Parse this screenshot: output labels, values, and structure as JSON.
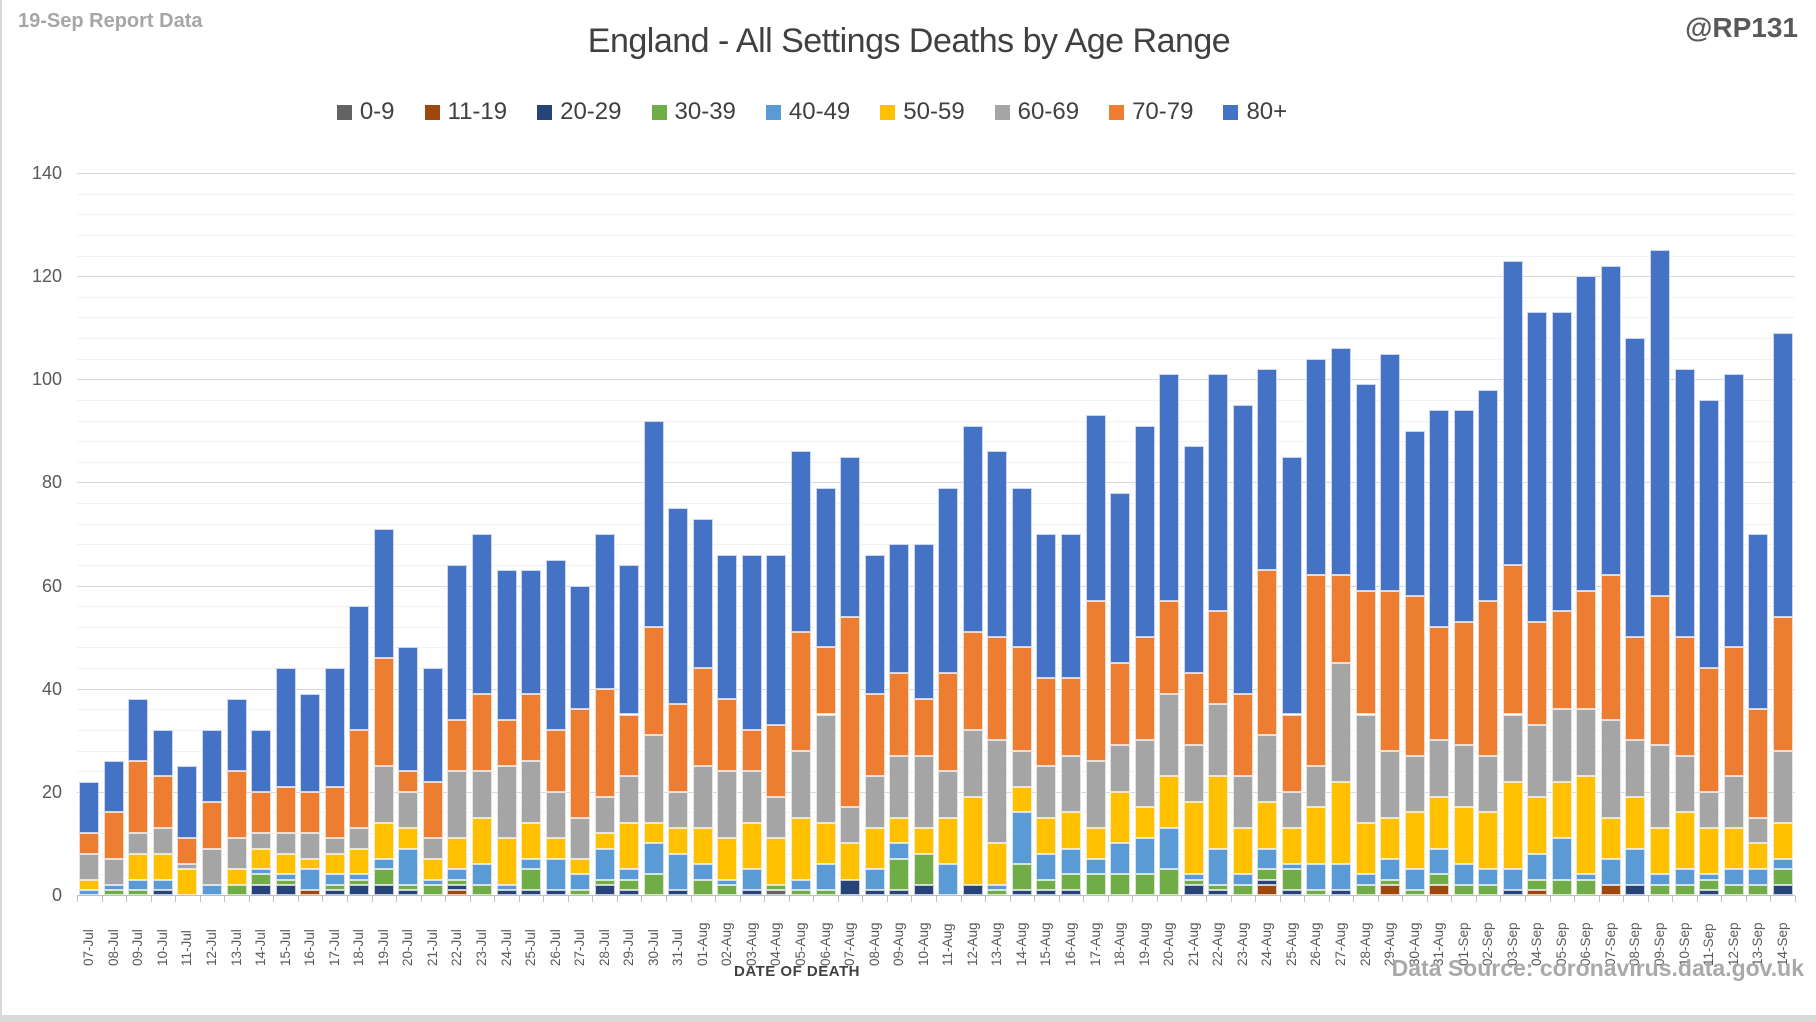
{
  "header": {
    "report_label": "19-Sep Report Data",
    "handle": "@RP131"
  },
  "footer": {
    "xaxis_title": "DATE OF DEATH",
    "source": "Data Source: coronavirus.data.gov.uk"
  },
  "chart_data": {
    "type": "bar",
    "stacked": true,
    "title": "England - All Settings Deaths by Age Range",
    "xlabel": "DATE OF DEATH",
    "ylabel": "",
    "ylim": [
      0,
      140
    ],
    "y_major": 20,
    "y_minor": 4,
    "y_ticks": [
      0,
      20,
      40,
      60,
      80,
      100,
      120,
      140
    ],
    "grid": true,
    "legend_position": "top",
    "categories": [
      "07-Jul",
      "08-Jul",
      "09-Jul",
      "10-Jul",
      "11-Jul",
      "12-Jul",
      "13-Jul",
      "14-Jul",
      "15-Jul",
      "16-Jul",
      "17-Jul",
      "18-Jul",
      "19-Jul",
      "20-Jul",
      "21-Jul",
      "22-Jul",
      "23-Jul",
      "24-Jul",
      "25-Jul",
      "26-Jul",
      "27-Jul",
      "28-Jul",
      "29-Jul",
      "30-Jul",
      "31-Jul",
      "01-Aug",
      "02-Aug",
      "03-Aug",
      "04-Aug",
      "05-Aug",
      "06-Aug",
      "07-Aug",
      "08-Aug",
      "09-Aug",
      "10-Aug",
      "11-Aug",
      "12-Aug",
      "13-Aug",
      "14-Aug",
      "15-Aug",
      "16-Aug",
      "17-Aug",
      "18-Aug",
      "19-Aug",
      "20-Aug",
      "21-Aug",
      "22-Aug",
      "23-Aug",
      "24-Aug",
      "25-Aug",
      "26-Aug",
      "27-Aug",
      "28-Aug",
      "29-Aug",
      "30-Aug",
      "31-Aug",
      "01-Sep",
      "02-Sep",
      "03-Sep",
      "04-Sep",
      "05-Sep",
      "06-Sep",
      "07-Sep",
      "08-Sep",
      "09-Sep",
      "10-Sep",
      "11-Sep",
      "12-Sep",
      "13-Sep",
      "14-Sep"
    ],
    "series": [
      {
        "name": "0-9",
        "color": "#636363",
        "values": [
          0,
          0,
          0,
          0,
          0,
          0,
          0,
          0,
          0,
          0,
          0,
          0,
          0,
          0,
          0,
          0,
          0,
          0,
          0,
          0,
          0,
          0,
          0,
          0,
          0,
          0,
          0,
          0,
          1,
          0,
          0,
          0,
          0,
          0,
          0,
          0,
          0,
          0,
          0,
          0,
          0,
          0,
          0,
          0,
          0,
          0,
          0,
          0,
          0,
          0,
          0,
          0,
          0,
          0,
          0,
          0,
          0,
          0,
          0,
          0,
          0,
          0,
          0,
          0,
          0,
          0,
          0,
          0,
          0,
          0
        ]
      },
      {
        "name": "11-19",
        "color": "#9e480e",
        "values": [
          0,
          0,
          0,
          0,
          0,
          0,
          0,
          0,
          0,
          1,
          0,
          0,
          0,
          0,
          0,
          1,
          0,
          0,
          0,
          0,
          0,
          0,
          0,
          0,
          0,
          0,
          0,
          0,
          0,
          0,
          0,
          0,
          0,
          0,
          0,
          0,
          0,
          0,
          0,
          0,
          0,
          0,
          0,
          0,
          0,
          0,
          0,
          0,
          2,
          0,
          0,
          0,
          0,
          2,
          0,
          2,
          0,
          0,
          0,
          1,
          0,
          0,
          2,
          0,
          0,
          0,
          0,
          0,
          0,
          0
        ]
      },
      {
        "name": "20-29",
        "color": "#264478",
        "values": [
          0,
          0,
          0,
          1,
          0,
          0,
          0,
          2,
          2,
          0,
          1,
          2,
          2,
          1,
          0,
          1,
          0,
          1,
          1,
          1,
          0,
          2,
          1,
          0,
          1,
          0,
          0,
          1,
          0,
          0,
          0,
          3,
          1,
          1,
          2,
          0,
          2,
          0,
          1,
          1,
          1,
          0,
          0,
          0,
          0,
          2,
          1,
          0,
          1,
          1,
          0,
          1,
          0,
          0,
          0,
          0,
          0,
          0,
          1,
          0,
          0,
          0,
          0,
          2,
          0,
          0,
          1,
          0,
          0,
          2
        ]
      },
      {
        "name": "30-39",
        "color": "#70ad47",
        "values": [
          0,
          1,
          1,
          0,
          0,
          0,
          2,
          2,
          1,
          0,
          1,
          1,
          3,
          1,
          2,
          1,
          2,
          0,
          4,
          0,
          1,
          1,
          2,
          4,
          0,
          3,
          2,
          0,
          1,
          1,
          1,
          0,
          0,
          6,
          6,
          0,
          0,
          1,
          5,
          2,
          3,
          4,
          4,
          4,
          5,
          1,
          1,
          2,
          2,
          4,
          1,
          0,
          2,
          1,
          1,
          2,
          2,
          2,
          0,
          2,
          3,
          3,
          0,
          0,
          2,
          2,
          2,
          2,
          2,
          3
        ]
      },
      {
        "name": "40-49",
        "color": "#5b9bd5",
        "values": [
          1,
          1,
          2,
          2,
          0,
          2,
          0,
          1,
          1,
          4,
          2,
          1,
          2,
          7,
          1,
          2,
          4,
          1,
          2,
          6,
          3,
          6,
          2,
          6,
          7,
          3,
          1,
          4,
          0,
          2,
          5,
          0,
          4,
          3,
          0,
          6,
          0,
          1,
          10,
          5,
          5,
          3,
          6,
          7,
          8,
          1,
          7,
          2,
          4,
          1,
          5,
          5,
          2,
          4,
          4,
          5,
          4,
          3,
          4,
          5,
          8,
          1,
          5,
          7,
          2,
          3,
          1,
          3,
          3,
          2
        ]
      },
      {
        "name": "50-59",
        "color": "#ffc000",
        "values": [
          2,
          0,
          5,
          5,
          5,
          0,
          3,
          4,
          4,
          2,
          4,
          5,
          7,
          4,
          4,
          6,
          9,
          9,
          7,
          4,
          3,
          3,
          9,
          4,
          5,
          7,
          8,
          9,
          9,
          12,
          8,
          7,
          8,
          5,
          5,
          9,
          17,
          8,
          5,
          7,
          7,
          6,
          10,
          6,
          10,
          14,
          14,
          9,
          9,
          7,
          11,
          16,
          10,
          8,
          11,
          10,
          11,
          11,
          17,
          11,
          11,
          19,
          8,
          10,
          9,
          11,
          9,
          8,
          5,
          7
        ]
      },
      {
        "name": "60-69",
        "color": "#a5a5a5",
        "values": [
          5,
          5,
          4,
          5,
          1,
          7,
          6,
          3,
          4,
          5,
          3,
          4,
          11,
          7,
          4,
          13,
          9,
          14,
          12,
          9,
          8,
          7,
          9,
          17,
          7,
          12,
          13,
          10,
          8,
          13,
          21,
          7,
          10,
          12,
          14,
          9,
          13,
          20,
          7,
          10,
          11,
          13,
          9,
          13,
          16,
          11,
          14,
          10,
          13,
          7,
          8,
          23,
          21,
          13,
          11,
          11,
          12,
          11,
          13,
          14,
          14,
          13,
          19,
          11,
          16,
          11,
          7,
          10,
          5,
          14
        ]
      },
      {
        "name": "70-79",
        "color": "#ed7d31",
        "values": [
          4,
          9,
          14,
          10,
          5,
          9,
          13,
          8,
          9,
          8,
          10,
          19,
          21,
          4,
          11,
          10,
          15,
          9,
          13,
          12,
          21,
          21,
          12,
          21,
          17,
          19,
          14,
          8,
          14,
          23,
          13,
          37,
          16,
          16,
          11,
          19,
          19,
          20,
          20,
          17,
          15,
          31,
          16,
          20,
          18,
          14,
          18,
          16,
          32,
          15,
          37,
          17,
          24,
          31,
          31,
          22,
          24,
          30,
          29,
          20,
          19,
          23,
          28,
          20,
          29,
          23,
          24,
          25,
          21,
          26
        ]
      },
      {
        "name": "80+",
        "color": "#4472c4",
        "values": [
          10,
          10,
          12,
          9,
          14,
          14,
          14,
          12,
          23,
          19,
          23,
          24,
          25,
          24,
          22,
          30,
          31,
          29,
          24,
          33,
          24,
          30,
          29,
          40,
          38,
          29,
          28,
          34,
          33,
          35,
          31,
          31,
          27,
          25,
          30,
          36,
          40,
          36,
          31,
          28,
          28,
          36,
          33,
          41,
          44,
          44,
          46,
          56,
          39,
          50,
          42,
          44,
          40,
          46,
          32,
          42,
          41,
          41,
          59,
          60,
          58,
          61,
          60,
          58,
          67,
          52,
          52,
          53,
          34,
          55
        ]
      }
    ]
  }
}
